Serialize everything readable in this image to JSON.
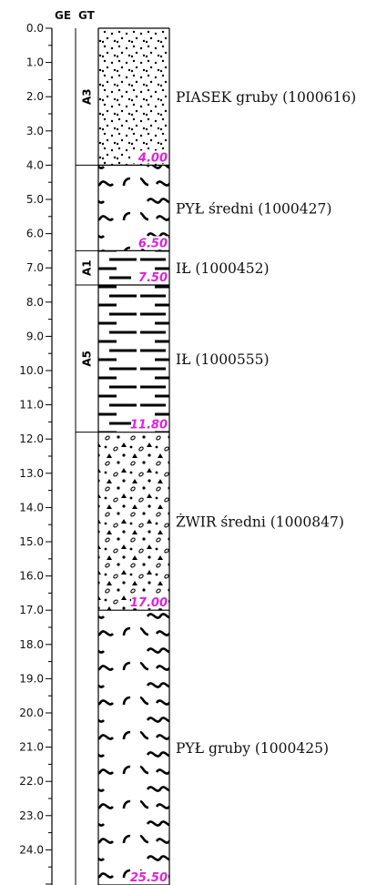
{
  "header": {
    "col_ge": "GE",
    "col_gt": "GT"
  },
  "axis": {
    "min": 0,
    "max": 25.5,
    "ticks": [
      "0.0",
      "1.0",
      "2.0",
      "3.0",
      "4.0",
      "5.0",
      "6.0",
      "7.0",
      "8.0",
      "9.0",
      "10.0",
      "11.0",
      "12.0",
      "13.0",
      "14.0",
      "15.0",
      "16.0",
      "17.0",
      "18.0",
      "19.0",
      "20.0",
      "21.0",
      "22.0",
      "23.0",
      "24.0"
    ]
  },
  "layers": [
    {
      "top": 0.0,
      "bottom": 4.0,
      "bottom_label": "4.00",
      "pattern": "sand",
      "description": "PIASEK gruby (1000616)"
    },
    {
      "top": 4.0,
      "bottom": 6.5,
      "bottom_label": "6.50",
      "pattern": "silt",
      "description": "PYŁ średni (1000427)"
    },
    {
      "top": 6.5,
      "bottom": 7.5,
      "bottom_label": "7.50",
      "pattern": "clay",
      "description": "IŁ (1000452)"
    },
    {
      "top": 7.5,
      "bottom": 11.8,
      "bottom_label": "11.80",
      "pattern": "clay",
      "description": "IŁ (1000555)"
    },
    {
      "top": 11.8,
      "bottom": 17.0,
      "bottom_label": "17.00",
      "pattern": "gravel",
      "description": "ŻWIR średni (1000847)"
    },
    {
      "top": 17.0,
      "bottom": 25.5,
      "bottom_label": "25.50",
      "pattern": "silt",
      "description": "PYŁ gruby (1000425)"
    }
  ],
  "geo_units": [
    {
      "top": 0.0,
      "bottom": 4.0,
      "label": "A3"
    },
    {
      "top": 4.0,
      "bottom": 6.5,
      "label": ""
    },
    {
      "top": 6.5,
      "bottom": 7.5,
      "label": "A1"
    },
    {
      "top": 7.5,
      "bottom": 11.8,
      "label": "A5"
    },
    {
      "top": 11.8,
      "bottom": 25.5,
      "label": ""
    }
  ],
  "colors": {
    "bottom_label": "#e020e0",
    "line": "#000000"
  }
}
